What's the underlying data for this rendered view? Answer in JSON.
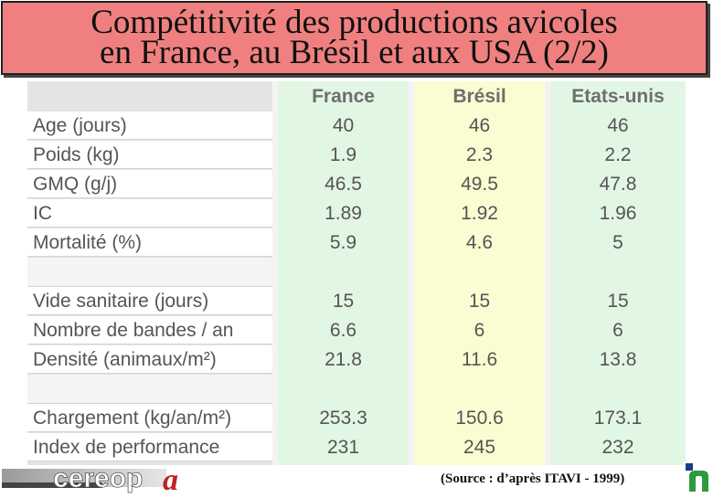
{
  "title": {
    "line1": "Compétitivité des productions avicoles",
    "line2": "en France, au Brésil et aux USA (2/2)"
  },
  "table": {
    "columns": [
      "France",
      "Brésil",
      "Etats-unis"
    ],
    "rows": [
      {
        "label": "Age (jours)",
        "values": [
          "40",
          "46",
          "46"
        ]
      },
      {
        "label": "Poids (kg)",
        "values": [
          "1.9",
          "2.3",
          "2.2"
        ]
      },
      {
        "label": "GMQ (g/j)",
        "values": [
          "46.5",
          "49.5",
          "47.8"
        ]
      },
      {
        "label": "IC",
        "values": [
          "1.89",
          "1.92",
          "1.96"
        ]
      },
      {
        "label": "Mortalité (%)",
        "values": [
          "5.9",
          "4.6",
          "5"
        ]
      },
      {
        "label": "",
        "values": [
          "",
          "",
          ""
        ]
      },
      {
        "label": "Vide sanitaire (jours)",
        "values": [
          "15",
          "15",
          "15"
        ]
      },
      {
        "label": "Nombre de bandes / an",
        "values": [
          "6.6",
          "6",
          "6"
        ]
      },
      {
        "label": "Densité (animaux/m²)",
        "values": [
          "21.8",
          "11.6",
          "13.8"
        ]
      },
      {
        "label": "",
        "values": [
          "",
          "",
          ""
        ]
      },
      {
        "label": "Chargement (kg/an/m²)",
        "values": [
          "253.3",
          "150.6",
          "173.1"
        ]
      },
      {
        "label": "Index de performance",
        "values": [
          "231",
          "245",
          "232"
        ]
      }
    ]
  },
  "source": "(Source : d’après ITAVI - 1999)",
  "logo": {
    "text": "cereopa"
  },
  "colors": {
    "title_bg": "#f08080",
    "france_col": "#e2f6e4",
    "bresil_col": "#fcfcd2",
    "usa_col": "#e2f6e4"
  }
}
